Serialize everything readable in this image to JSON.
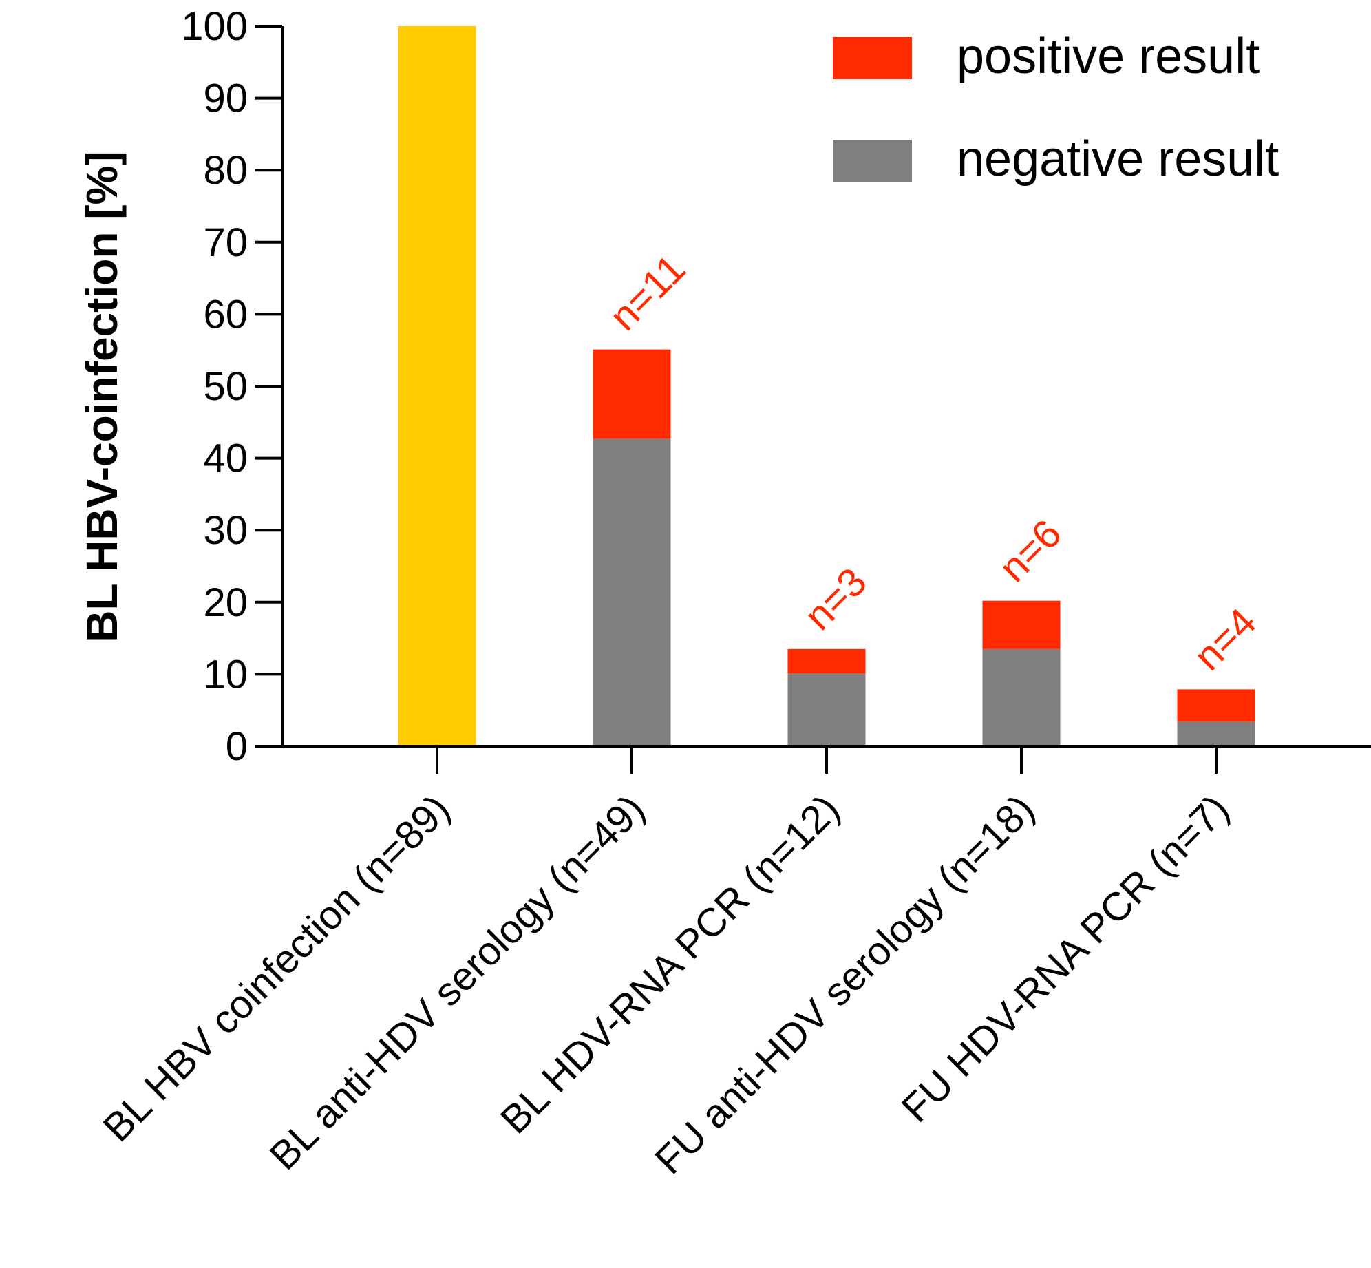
{
  "chart_data": {
    "type": "bar",
    "stacked": true,
    "title": "",
    "xlabel": "",
    "ylabel": "BL HBV-coinfection [%]",
    "ylim": [
      0,
      100
    ],
    "yticks": [
      0,
      10,
      20,
      30,
      40,
      50,
      60,
      70,
      80,
      90,
      100
    ],
    "grid": false,
    "legend_position": "top-right",
    "categories": [
      "BL HBV coinfection (n=89)",
      "BL anti-HDV serology (n=49)",
      "BL HDV-RNA PCR (n=12)",
      "FU anti-HDV serology (n=18)",
      "FU HDV-RNA PCR (n=7)"
    ],
    "series": [
      {
        "name": "",
        "color": "#FFCC00",
        "values": [
          100,
          0,
          0,
          0,
          0
        ]
      },
      {
        "name": "negative result",
        "color": "#7F7F7F",
        "values": [
          0,
          42.7,
          10.1,
          13.5,
          3.4
        ]
      },
      {
        "name": "positive result",
        "color": "#FF2A00",
        "values": [
          0,
          12.4,
          3.4,
          6.7,
          4.5
        ]
      }
    ],
    "annotations": [
      "",
      "n=11",
      "n=3",
      "n=6",
      "n=4"
    ],
    "annotation_color": "#FF2A00"
  }
}
